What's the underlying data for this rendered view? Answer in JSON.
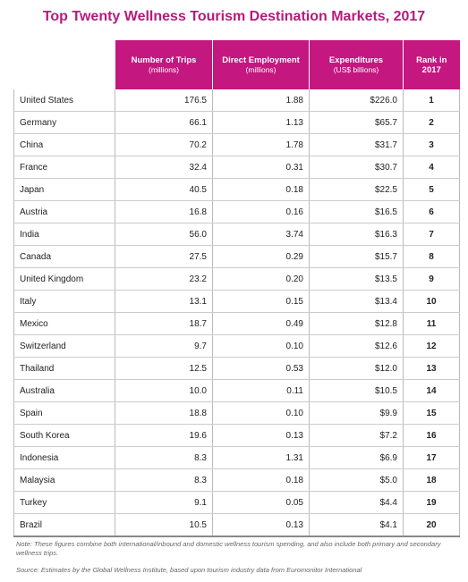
{
  "title": "Top Twenty Wellness Tourism Destination Markets, 2017",
  "table": {
    "header": [
      {
        "title": "Number of Trips",
        "sub": "(millions)"
      },
      {
        "title": "Direct Employment",
        "sub": "(millions)"
      },
      {
        "title": "Expenditures",
        "sub": "(US$ billions)"
      },
      {
        "title": "Rank in 2017"
      }
    ],
    "rows": [
      [
        "United States",
        "176.5",
        "1.88",
        "$226.0",
        "1"
      ],
      [
        "Germany",
        "66.1",
        "1.13",
        "$65.7",
        "2"
      ],
      [
        "China",
        "70.2",
        "1.78",
        "$31.7",
        "3"
      ],
      [
        "France",
        "32.4",
        "0.31",
        "$30.7",
        "4"
      ],
      [
        "Japan",
        "40.5",
        "0.18",
        "$22.5",
        "5"
      ],
      [
        "Austria",
        "16.8",
        "0.16",
        "$16.5",
        "6"
      ],
      [
        "India",
        "56.0",
        "3.74",
        "$16.3",
        "7"
      ],
      [
        "Canada",
        "27.5",
        "0.29",
        "$15.7",
        "8"
      ],
      [
        "United Kingdom",
        "23.2",
        "0.20",
        "$13.5",
        "9"
      ],
      [
        "Italy",
        "13.1",
        "0.15",
        "$13.4",
        "10"
      ],
      [
        "Mexico",
        "18.7",
        "0.49",
        "$12.8",
        "11"
      ],
      [
        "Switzerland",
        "9.7",
        "0.10",
        "$12.6",
        "12"
      ],
      [
        "Thailand",
        "12.5",
        "0.53",
        "$12.0",
        "13"
      ],
      [
        "Australia",
        "10.0",
        "0.11",
        "$10.5",
        "14"
      ],
      [
        "Spain",
        "18.8",
        "0.10",
        "$9.9",
        "15"
      ],
      [
        "South Korea",
        "19.6",
        "0.13",
        "$7.2",
        "16"
      ],
      [
        "Indonesia",
        "8.3",
        "1.31",
        "$6.9",
        "17"
      ],
      [
        "Malaysia",
        "8.3",
        "0.18",
        "$5.0",
        "18"
      ],
      [
        "Turkey",
        "9.1",
        "0.05",
        "$4.4",
        "19"
      ],
      [
        "Brazil",
        "10.5",
        "0.13",
        "$4.1",
        "20"
      ]
    ]
  },
  "note": "Note: These figures combine both international/inbound and domestic wellness tourism spending, and also include both primary and secondary wellness trips.",
  "source": "Source: Estimates by the Global Wellness Institute, based upon tourism industry data from Euromonitor International"
}
